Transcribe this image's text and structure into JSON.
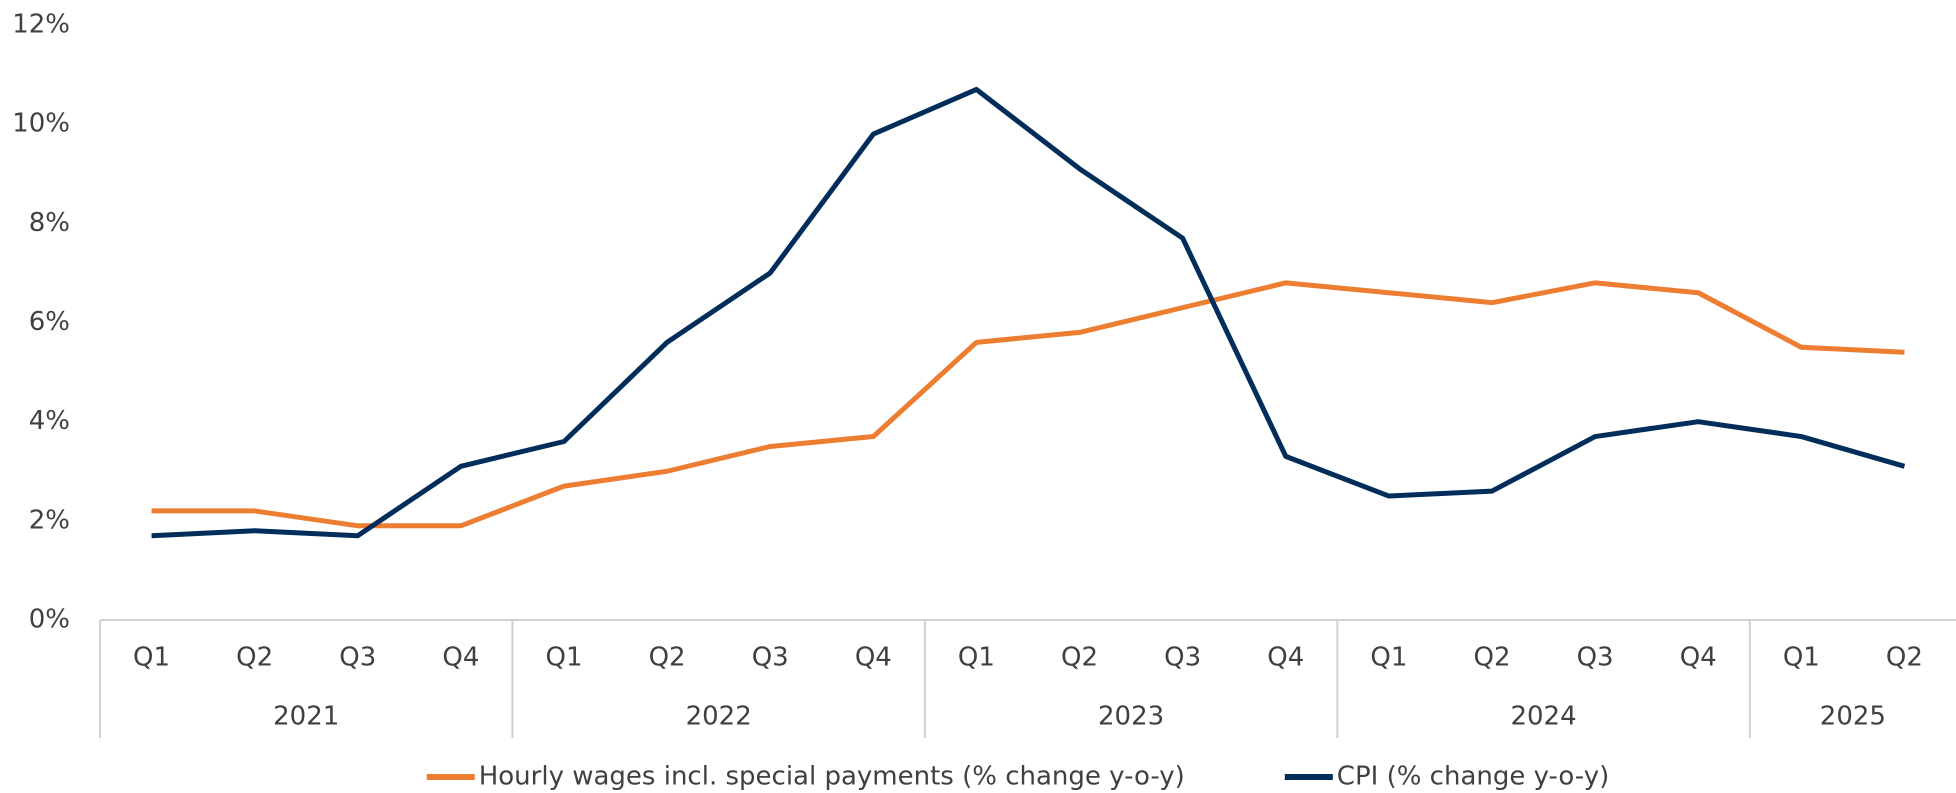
{
  "chart_data": {
    "type": "line",
    "categories": [
      "Q1",
      "Q2",
      "Q3",
      "Q4",
      "Q1",
      "Q2",
      "Q3",
      "Q4",
      "Q1",
      "Q2",
      "Q3",
      "Q4",
      "Q1",
      "Q2",
      "Q3",
      "Q4",
      "Q1",
      "Q2"
    ],
    "groups": [
      {
        "label": "2021",
        "span": 4
      },
      {
        "label": "2022",
        "span": 4
      },
      {
        "label": "2023",
        "span": 4
      },
      {
        "label": "2024",
        "span": 4
      },
      {
        "label": "2025",
        "span": 2
      }
    ],
    "series": [
      {
        "name": "Hourly wages incl. special payments (% change y-o-y)",
        "color": "#ed7d31",
        "values": [
          2.2,
          2.2,
          1.9,
          1.9,
          2.7,
          3.0,
          3.5,
          3.7,
          5.6,
          5.8,
          6.3,
          6.8,
          6.6,
          6.4,
          6.8,
          6.6,
          5.5,
          5.4
        ]
      },
      {
        "name": "CPI (% change y-o-y)",
        "color": "#002d5a",
        "values": [
          1.7,
          1.8,
          1.7,
          3.1,
          3.6,
          5.6,
          7.0,
          9.8,
          10.7,
          9.1,
          7.7,
          3.3,
          2.5,
          2.6,
          3.7,
          4.0,
          3.7,
          3.1
        ]
      }
    ],
    "ylim": [
      0,
      12
    ],
    "yticks": [
      {
        "value": 0,
        "label": "0%"
      },
      {
        "value": 2,
        "label": "2%"
      },
      {
        "value": 4,
        "label": "4%"
      },
      {
        "value": 6,
        "label": "6%"
      },
      {
        "value": 8,
        "label": "8%"
      },
      {
        "value": 10,
        "label": "10%"
      },
      {
        "value": 12,
        "label": "12%"
      }
    ],
    "legend": "bottom"
  }
}
